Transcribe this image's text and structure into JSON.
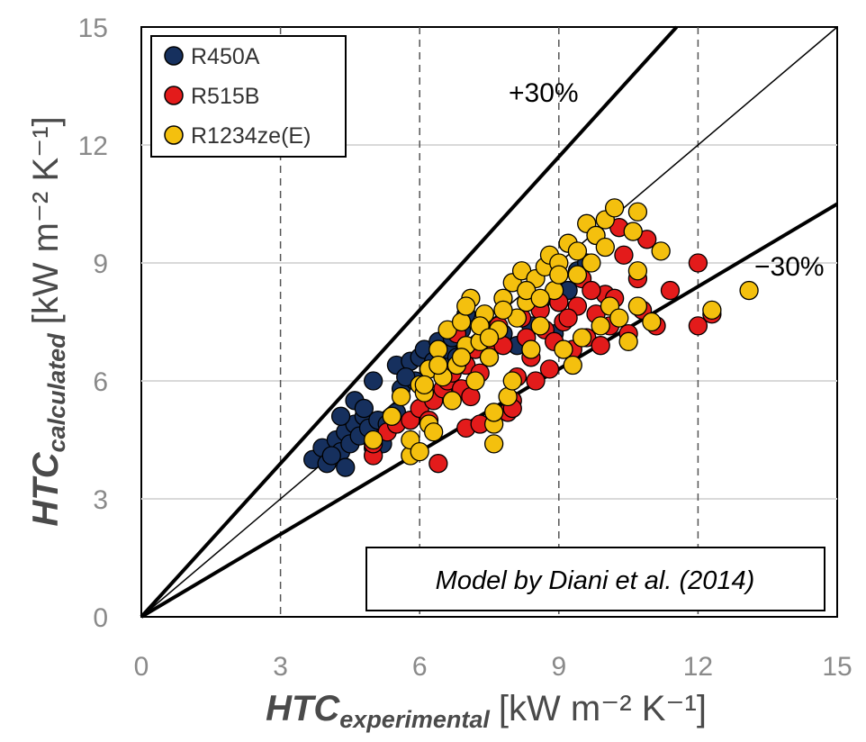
{
  "chart_data": {
    "type": "scatter",
    "xlabel": {
      "main": "HTC",
      "sub": "experimental",
      "unit": "[kW m⁻² K⁻¹]"
    },
    "ylabel": {
      "main": "HTC",
      "sub": "calculated",
      "unit": "[kW m⁻² K⁻¹]"
    },
    "xlim": [
      0,
      15
    ],
    "ylim": [
      0,
      15
    ],
    "x_ticks": [
      "0",
      "3",
      "6",
      "9",
      "12",
      "15"
    ],
    "y_ticks": [
      "0",
      "3",
      "6",
      "9",
      "12",
      "15"
    ],
    "x_gridlines": [
      3,
      6,
      9,
      12
    ],
    "y_gridlines": [
      3,
      6,
      9,
      12
    ],
    "reference_lines": [
      {
        "label": "+30%",
        "slope": 1.3
      },
      {
        "label": "",
        "slope": 1.0
      },
      {
        "label": "−30%",
        "slope": 0.7
      }
    ],
    "annotation": "Model by Diani et al. (2014)",
    "legend_position": "top-left",
    "series": [
      {
        "name": "R450A",
        "color": "#16305e",
        "points": [
          [
            3.7,
            4.0
          ],
          [
            3.9,
            4.3
          ],
          [
            4.0,
            3.9
          ],
          [
            4.2,
            4.5
          ],
          [
            4.3,
            4.2
          ],
          [
            4.4,
            4.7
          ],
          [
            4.5,
            4.4
          ],
          [
            4.6,
            4.9
          ],
          [
            4.7,
            4.6
          ],
          [
            4.8,
            5.1
          ],
          [
            4.3,
            5.1
          ],
          [
            4.4,
            3.8
          ],
          [
            4.6,
            5.5
          ],
          [
            4.8,
            5.3
          ],
          [
            4.9,
            4.8
          ],
          [
            5.0,
            4.3
          ],
          [
            5.0,
            6.0
          ],
          [
            5.1,
            5.0
          ],
          [
            5.3,
            4.9
          ],
          [
            5.5,
            5.2
          ],
          [
            5.5,
            6.4
          ],
          [
            5.6,
            5.8
          ],
          [
            5.8,
            6.5
          ],
          [
            5.9,
            6.0
          ],
          [
            6.0,
            6.6
          ],
          [
            6.1,
            6.8
          ],
          [
            6.2,
            6.3
          ],
          [
            6.3,
            6.5
          ],
          [
            6.4,
            7.0
          ],
          [
            6.5,
            6.6
          ],
          [
            6.6,
            6.8
          ],
          [
            6.7,
            7.1
          ],
          [
            6.9,
            7.3
          ],
          [
            7.2,
            6.9
          ],
          [
            7.5,
            7.4
          ],
          [
            7.8,
            7.2
          ],
          [
            8.1,
            6.9
          ],
          [
            8.4,
            7.4
          ],
          [
            8.6,
            8.0
          ],
          [
            8.9,
            7.2
          ],
          [
            9.0,
            8.0
          ],
          [
            9.2,
            8.3
          ],
          [
            9.4,
            8.8
          ],
          [
            9.6,
            9.0
          ],
          [
            9.8,
            9.7
          ],
          [
            7.0,
            7.7
          ],
          [
            6.8,
            6.6
          ],
          [
            4.1,
            4.1
          ],
          [
            5.2,
            4.4
          ],
          [
            5.7,
            6.1
          ]
        ]
      },
      {
        "name": "R515B",
        "color": "#e31b1b",
        "points": [
          [
            5.0,
            4.1
          ],
          [
            5.0,
            4.4
          ],
          [
            5.3,
            4.7
          ],
          [
            5.5,
            4.9
          ],
          [
            5.8,
            5.0
          ],
          [
            6.0,
            5.3
          ],
          [
            6.2,
            5.0
          ],
          [
            6.3,
            5.5
          ],
          [
            6.5,
            5.8
          ],
          [
            6.6,
            6.0
          ],
          [
            6.7,
            6.2
          ],
          [
            6.9,
            5.8
          ],
          [
            7.0,
            6.4
          ],
          [
            7.1,
            5.6
          ],
          [
            7.2,
            6.8
          ],
          [
            7.3,
            6.2
          ],
          [
            7.5,
            6.6
          ],
          [
            7.6,
            7.0
          ],
          [
            7.7,
            7.4
          ],
          [
            7.8,
            6.9
          ],
          [
            7.9,
            5.2
          ],
          [
            8.0,
            5.5
          ],
          [
            8.1,
            6.1
          ],
          [
            8.2,
            7.6
          ],
          [
            8.3,
            7.1
          ],
          [
            8.4,
            6.6
          ],
          [
            8.5,
            6.0
          ],
          [
            8.6,
            7.8
          ],
          [
            8.7,
            7.3
          ],
          [
            8.8,
            6.3
          ],
          [
            8.9,
            7.0
          ],
          [
            9.0,
            8.0
          ],
          [
            9.1,
            7.5
          ],
          [
            9.3,
            6.8
          ],
          [
            9.4,
            7.9
          ],
          [
            9.5,
            8.6
          ],
          [
            9.6,
            7.1
          ],
          [
            9.8,
            7.7
          ],
          [
            9.9,
            6.9
          ],
          [
            10.0,
            8.2
          ],
          [
            10.1,
            7.4
          ],
          [
            10.3,
            9.9
          ],
          [
            10.4,
            9.2
          ],
          [
            10.5,
            7.2
          ],
          [
            10.7,
            8.6
          ],
          [
            10.8,
            7.8
          ],
          [
            10.9,
            9.6
          ],
          [
            11.1,
            7.4
          ],
          [
            11.4,
            8.3
          ],
          [
            12.0,
            9.0
          ],
          [
            12.0,
            7.4
          ],
          [
            12.3,
            7.7
          ],
          [
            6.4,
            3.9
          ],
          [
            7.0,
            4.8
          ],
          [
            7.3,
            4.9
          ],
          [
            8.0,
            5.3
          ],
          [
            9.2,
            7.6
          ],
          [
            9.7,
            8.3
          ],
          [
            10.2,
            8.1
          ],
          [
            6.8,
            7.2
          ]
        ]
      },
      {
        "name": "R1234ze(E)",
        "color": "#f4c00e",
        "points": [
          [
            5.0,
            4.5
          ],
          [
            5.4,
            5.1
          ],
          [
            5.6,
            5.6
          ],
          [
            5.8,
            4.1
          ],
          [
            5.8,
            4.5
          ],
          [
            6.0,
            4.2
          ],
          [
            6.0,
            5.9
          ],
          [
            6.1,
            5.7
          ],
          [
            6.2,
            6.3
          ],
          [
            6.2,
            4.9
          ],
          [
            6.3,
            4.7
          ],
          [
            6.4,
            6.8
          ],
          [
            6.5,
            6.1
          ],
          [
            6.6,
            7.3
          ],
          [
            6.7,
            5.5
          ],
          [
            6.8,
            6.4
          ],
          [
            6.9,
            7.5
          ],
          [
            7.0,
            6.9
          ],
          [
            7.1,
            8.1
          ],
          [
            7.2,
            6.0
          ],
          [
            7.3,
            7.0
          ],
          [
            7.4,
            7.7
          ],
          [
            7.5,
            6.6
          ],
          [
            7.6,
            4.4
          ],
          [
            7.6,
            4.9
          ],
          [
            7.6,
            5.2
          ],
          [
            7.7,
            7.3
          ],
          [
            7.8,
            8.1
          ],
          [
            7.9,
            5.6
          ],
          [
            8.0,
            6.0
          ],
          [
            8.0,
            8.5
          ],
          [
            8.1,
            7.6
          ],
          [
            8.2,
            8.8
          ],
          [
            8.3,
            8.0
          ],
          [
            8.4,
            6.8
          ],
          [
            8.5,
            8.6
          ],
          [
            8.6,
            7.4
          ],
          [
            8.7,
            8.9
          ],
          [
            8.8,
            9.2
          ],
          [
            8.9,
            8.3
          ],
          [
            9.0,
            9.0
          ],
          [
            9.1,
            6.8
          ],
          [
            9.2,
            9.5
          ],
          [
            9.3,
            6.4
          ],
          [
            9.4,
            9.3
          ],
          [
            9.5,
            7.1
          ],
          [
            9.6,
            10.0
          ],
          [
            9.7,
            9.0
          ],
          [
            9.8,
            9.7
          ],
          [
            9.9,
            7.4
          ],
          [
            10.0,
            10.1
          ],
          [
            10.1,
            7.9
          ],
          [
            10.2,
            10.4
          ],
          [
            10.3,
            7.6
          ],
          [
            10.5,
            7.0
          ],
          [
            10.6,
            9.8
          ],
          [
            10.7,
            10.3
          ],
          [
            10.7,
            8.8
          ],
          [
            10.7,
            7.9
          ],
          [
            11.0,
            7.5
          ],
          [
            11.2,
            9.3
          ],
          [
            12.3,
            7.8
          ],
          [
            13.1,
            8.3
          ],
          [
            6.9,
            6.6
          ],
          [
            7.0,
            7.9
          ],
          [
            7.3,
            7.4
          ],
          [
            7.8,
            7.8
          ],
          [
            8.3,
            8.3
          ],
          [
            8.6,
            8.1
          ],
          [
            9.0,
            8.7
          ],
          [
            9.4,
            8.7
          ],
          [
            10.0,
            9.4
          ],
          [
            6.4,
            6.4
          ],
          [
            6.1,
            5.9
          ],
          [
            7.5,
            7.1
          ]
        ]
      }
    ]
  }
}
